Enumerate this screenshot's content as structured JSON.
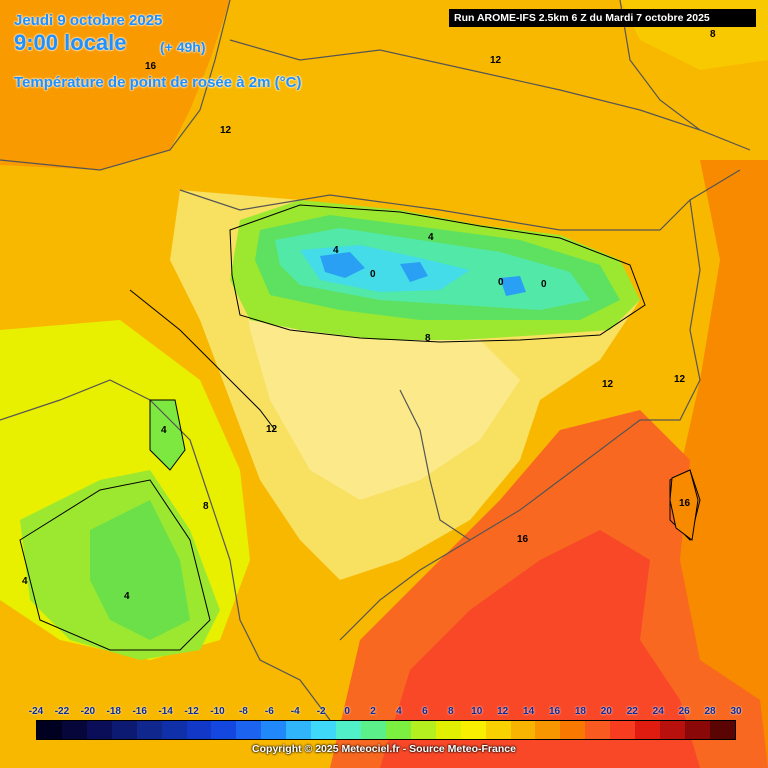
{
  "header": {
    "date": "Jeudi 9 octobre 2025",
    "time": "9:00 locale",
    "lead": "(+ 49h)",
    "parameter": "Température de point de rosée à 2m (°C)",
    "run": "Run AROME-IFS 2.5km 6 Z du Mardi 7 octobre 2025"
  },
  "contour_labels": [
    "16",
    "12",
    "12",
    "8",
    "4",
    "4",
    "0",
    "0",
    "0",
    "8",
    "12",
    "12",
    "12",
    "4",
    "8",
    "4",
    "4",
    "16",
    "16"
  ],
  "scale": {
    "ticks": [
      "-24",
      "-22",
      "-20",
      "-18",
      "-16",
      "-14",
      "-12",
      "-10",
      "-8",
      "-6",
      "-4",
      "-2",
      "0",
      "2",
      "4",
      "6",
      "8",
      "10",
      "12",
      "14",
      "16",
      "18",
      "20",
      "22",
      "24",
      "26",
      "28",
      "30"
    ],
    "colors": [
      "#000020",
      "#06063a",
      "#0a0e58",
      "#0c1a72",
      "#10288e",
      "#1030aa",
      "#1238c8",
      "#1446e0",
      "#1c64f0",
      "#2088f8",
      "#30b4fa",
      "#40d8f8",
      "#52f0c8",
      "#5cf08a",
      "#7cf040",
      "#b4f020",
      "#e0f000",
      "#f8f000",
      "#f8d200",
      "#f8b400",
      "#f89600",
      "#f87800",
      "#f85a20",
      "#f83c20",
      "#e01c10",
      "#b8100c",
      "#8a0808",
      "#5a0404"
    ]
  },
  "copyright": "Copyright © 2025 Meteociel.fr - Source Meteo-France"
}
